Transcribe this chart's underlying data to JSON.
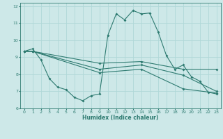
{
  "bg_color": "#cde8e8",
  "grid_color": "#b0d8d8",
  "line_color": "#2d7a70",
  "xlabel": "Humidex (Indice chaleur)",
  "xlim": [
    -0.5,
    23.5
  ],
  "ylim": [
    6,
    12.2
  ],
  "yticks": [
    6,
    7,
    8,
    9,
    10,
    11,
    12
  ],
  "xticks": [
    0,
    1,
    2,
    3,
    4,
    5,
    6,
    7,
    8,
    9,
    10,
    11,
    12,
    13,
    14,
    15,
    16,
    17,
    18,
    19,
    20,
    21,
    22,
    23
  ],
  "lines": [
    {
      "x": [
        0,
        1,
        2,
        3,
        4,
        5,
        6,
        7,
        8,
        9,
        10,
        11,
        12,
        13,
        14,
        15,
        16,
        17,
        18,
        19,
        20,
        21,
        22,
        23
      ],
      "y": [
        9.35,
        9.5,
        8.85,
        7.75,
        7.25,
        7.1,
        6.65,
        6.45,
        6.75,
        6.85,
        10.3,
        11.55,
        11.2,
        11.75,
        11.55,
        11.6,
        10.5,
        9.1,
        8.3,
        8.55,
        7.85,
        7.6,
        6.95,
        6.85
      ]
    },
    {
      "x": [
        0,
        1,
        9,
        14,
        19,
        23
      ],
      "y": [
        9.35,
        9.35,
        8.65,
        8.75,
        8.3,
        8.3
      ]
    },
    {
      "x": [
        0,
        1,
        9,
        14,
        19,
        23
      ],
      "y": [
        9.35,
        9.35,
        8.3,
        8.55,
        7.95,
        7.0
      ]
    },
    {
      "x": [
        0,
        1,
        9,
        14,
        19,
        23
      ],
      "y": [
        9.35,
        9.35,
        8.1,
        8.3,
        7.15,
        6.9
      ]
    }
  ]
}
